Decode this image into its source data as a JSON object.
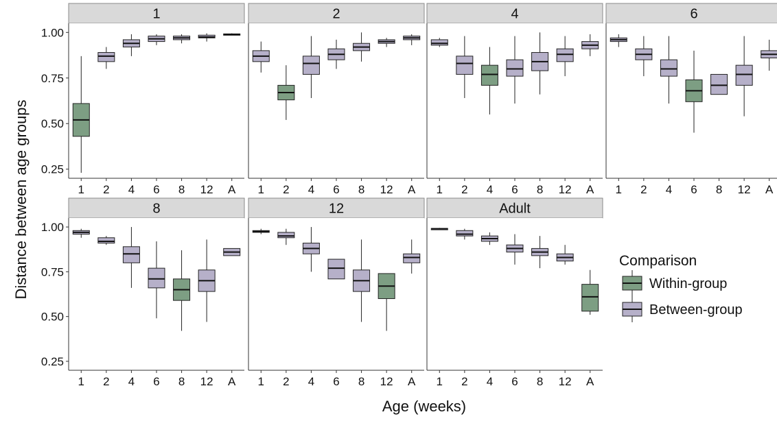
{
  "chart_data": {
    "type": "boxplot",
    "facet_by": "Age (weeks)",
    "xlabel": "Age (weeks)",
    "ylabel": "Distance between age groups",
    "categories": [
      "1",
      "2",
      "4",
      "6",
      "8",
      "12",
      "A"
    ],
    "ylim": [
      0.2,
      1.05
    ],
    "yticks": [
      0.25,
      0.5,
      0.75,
      1.0
    ],
    "ytick_labels": [
      "0.25",
      "0.50",
      "0.75",
      "1.00"
    ],
    "grid": false,
    "legend": {
      "title": "Comparison",
      "position": "right",
      "entries": [
        {
          "name": "Within-group",
          "color": "#7d9e83"
        },
        {
          "name": "Between-group",
          "color": "#b6b0c9"
        }
      ]
    },
    "facets": [
      {
        "title": "1",
        "boxes": [
          {
            "x": "1",
            "type": "within",
            "whisker_low": 0.23,
            "q1": 0.43,
            "median": 0.52,
            "q3": 0.61,
            "whisker_high": 0.87
          },
          {
            "x": "2",
            "type": "between",
            "whisker_low": 0.8,
            "q1": 0.84,
            "median": 0.87,
            "q3": 0.89,
            "whisker_high": 0.92
          },
          {
            "x": "4",
            "type": "between",
            "whisker_low": 0.87,
            "q1": 0.92,
            "median": 0.94,
            "q3": 0.96,
            "whisker_high": 0.99
          },
          {
            "x": "6",
            "type": "between",
            "whisker_low": 0.93,
            "q1": 0.95,
            "median": 0.965,
            "q3": 0.98,
            "whisker_high": 0.99
          },
          {
            "x": "8",
            "type": "between",
            "whisker_low": 0.94,
            "q1": 0.96,
            "median": 0.97,
            "q3": 0.98,
            "whisker_high": 0.99
          },
          {
            "x": "12",
            "type": "between",
            "whisker_low": 0.95,
            "q1": 0.97,
            "median": 0.975,
            "q3": 0.985,
            "whisker_high": 0.995
          },
          {
            "x": "A",
            "type": "between",
            "whisker_low": 0.985,
            "q1": 0.988,
            "median": 0.99,
            "q3": 0.992,
            "whisker_high": 0.995
          }
        ]
      },
      {
        "title": "2",
        "boxes": [
          {
            "x": "1",
            "type": "between",
            "whisker_low": 0.78,
            "q1": 0.84,
            "median": 0.87,
            "q3": 0.9,
            "whisker_high": 0.95
          },
          {
            "x": "2",
            "type": "within",
            "whisker_low": 0.52,
            "q1": 0.63,
            "median": 0.67,
            "q3": 0.71,
            "whisker_high": 0.82
          },
          {
            "x": "4",
            "type": "between",
            "whisker_low": 0.64,
            "q1": 0.77,
            "median": 0.83,
            "q3": 0.87,
            "whisker_high": 0.98
          },
          {
            "x": "6",
            "type": "between",
            "whisker_low": 0.8,
            "q1": 0.85,
            "median": 0.88,
            "q3": 0.91,
            "whisker_high": 0.96
          },
          {
            "x": "8",
            "type": "between",
            "whisker_low": 0.84,
            "q1": 0.9,
            "median": 0.92,
            "q3": 0.94,
            "whisker_high": 1.0
          },
          {
            "x": "12",
            "type": "between",
            "whisker_low": 0.92,
            "q1": 0.94,
            "median": 0.95,
            "q3": 0.96,
            "whisker_high": 0.97
          },
          {
            "x": "A",
            "type": "between",
            "whisker_low": 0.93,
            "q1": 0.96,
            "median": 0.97,
            "q3": 0.98,
            "whisker_high": 0.99
          }
        ]
      },
      {
        "title": "4",
        "boxes": [
          {
            "x": "1",
            "type": "between",
            "whisker_low": 0.92,
            "q1": 0.93,
            "median": 0.94,
            "q3": 0.96,
            "whisker_high": 0.97
          },
          {
            "x": "2",
            "type": "between",
            "whisker_low": 0.64,
            "q1": 0.77,
            "median": 0.83,
            "q3": 0.87,
            "whisker_high": 0.98
          },
          {
            "x": "4",
            "type": "within",
            "whisker_low": 0.55,
            "q1": 0.71,
            "median": 0.77,
            "q3": 0.82,
            "whisker_high": 0.92
          },
          {
            "x": "6",
            "type": "between",
            "whisker_low": 0.61,
            "q1": 0.76,
            "median": 0.8,
            "q3": 0.85,
            "whisker_high": 0.98
          },
          {
            "x": "8",
            "type": "between",
            "whisker_low": 0.66,
            "q1": 0.79,
            "median": 0.84,
            "q3": 0.89,
            "whisker_high": 1.0
          },
          {
            "x": "12",
            "type": "between",
            "whisker_low": 0.76,
            "q1": 0.84,
            "median": 0.88,
            "q3": 0.91,
            "whisker_high": 0.98
          },
          {
            "x": "A",
            "type": "between",
            "whisker_low": 0.87,
            "q1": 0.91,
            "median": 0.93,
            "q3": 0.95,
            "whisker_high": 0.99
          }
        ]
      },
      {
        "title": "6",
        "boxes": [
          {
            "x": "1",
            "type": "between",
            "whisker_low": 0.92,
            "q1": 0.95,
            "median": 0.96,
            "q3": 0.97,
            "whisker_high": 0.99
          },
          {
            "x": "2",
            "type": "between",
            "whisker_low": 0.76,
            "q1": 0.85,
            "median": 0.88,
            "q3": 0.91,
            "whisker_high": 0.98
          },
          {
            "x": "4",
            "type": "between",
            "whisker_low": 0.61,
            "q1": 0.76,
            "median": 0.8,
            "q3": 0.85,
            "whisker_high": 0.98
          },
          {
            "x": "6",
            "type": "within",
            "whisker_low": 0.45,
            "q1": 0.62,
            "median": 0.68,
            "q3": 0.74,
            "whisker_high": 0.9
          },
          {
            "x": "8",
            "type": "between",
            "whisker_low": 0.66,
            "q1": 0.66,
            "median": 0.71,
            "q3": 0.77,
            "whisker_high": 0.77
          },
          {
            "x": "12",
            "type": "between",
            "whisker_low": 0.54,
            "q1": 0.71,
            "median": 0.77,
            "q3": 0.82,
            "whisker_high": 0.98
          },
          {
            "x": "A",
            "type": "between",
            "whisker_low": 0.79,
            "q1": 0.86,
            "median": 0.88,
            "q3": 0.9,
            "whisker_high": 0.96
          }
        ]
      },
      {
        "title": "8",
        "boxes": [
          {
            "x": "1",
            "type": "between",
            "whisker_low": 0.94,
            "q1": 0.96,
            "median": 0.97,
            "q3": 0.98,
            "whisker_high": 0.99
          },
          {
            "x": "2",
            "type": "between",
            "whisker_low": 0.9,
            "q1": 0.91,
            "median": 0.92,
            "q3": 0.94,
            "whisker_high": 0.95
          },
          {
            "x": "4",
            "type": "between",
            "whisker_low": 0.66,
            "q1": 0.8,
            "median": 0.85,
            "q3": 0.89,
            "whisker_high": 1.0
          },
          {
            "x": "6",
            "type": "between",
            "whisker_low": 0.49,
            "q1": 0.66,
            "median": 0.71,
            "q3": 0.77,
            "whisker_high": 0.92
          },
          {
            "x": "8",
            "type": "within",
            "whisker_low": 0.42,
            "q1": 0.59,
            "median": 0.65,
            "q3": 0.71,
            "whisker_high": 0.87
          },
          {
            "x": "12",
            "type": "between",
            "whisker_low": 0.47,
            "q1": 0.64,
            "median": 0.7,
            "q3": 0.76,
            "whisker_high": 0.93
          },
          {
            "x": "A",
            "type": "between",
            "whisker_low": 0.84,
            "q1": 0.84,
            "median": 0.86,
            "q3": 0.88,
            "whisker_high": 0.88
          }
        ]
      },
      {
        "title": "12",
        "boxes": [
          {
            "x": "1",
            "type": "between",
            "whisker_low": 0.96,
            "q1": 0.97,
            "median": 0.975,
            "q3": 0.98,
            "whisker_high": 0.99
          },
          {
            "x": "2",
            "type": "between",
            "whisker_low": 0.9,
            "q1": 0.94,
            "median": 0.95,
            "q3": 0.97,
            "whisker_high": 0.99
          },
          {
            "x": "4",
            "type": "between",
            "whisker_low": 0.75,
            "q1": 0.85,
            "median": 0.88,
            "q3": 0.91,
            "whisker_high": 1.0
          },
          {
            "x": "6",
            "type": "between",
            "whisker_low": 0.71,
            "q1": 0.71,
            "median": 0.77,
            "q3": 0.82,
            "whisker_high": 0.82
          },
          {
            "x": "8",
            "type": "between",
            "whisker_low": 0.47,
            "q1": 0.64,
            "median": 0.7,
            "q3": 0.76,
            "whisker_high": 0.93
          },
          {
            "x": "12",
            "type": "within",
            "whisker_low": 0.42,
            "q1": 0.6,
            "median": 0.67,
            "q3": 0.74,
            "whisker_high": 0.74
          },
          {
            "x": "A",
            "type": "between",
            "whisker_low": 0.74,
            "q1": 0.8,
            "median": 0.83,
            "q3": 0.85,
            "whisker_high": 0.93
          }
        ]
      },
      {
        "title": "Adult",
        "boxes": [
          {
            "x": "1",
            "type": "between",
            "whisker_low": 0.985,
            "q1": 0.988,
            "median": 0.99,
            "q3": 0.992,
            "whisker_high": 0.995
          },
          {
            "x": "2",
            "type": "between",
            "whisker_low": 0.93,
            "q1": 0.95,
            "median": 0.96,
            "q3": 0.98,
            "whisker_high": 0.99
          },
          {
            "x": "4",
            "type": "between",
            "whisker_low": 0.9,
            "q1": 0.92,
            "median": 0.935,
            "q3": 0.95,
            "whisker_high": 0.97
          },
          {
            "x": "6",
            "type": "between",
            "whisker_low": 0.79,
            "q1": 0.86,
            "median": 0.88,
            "q3": 0.9,
            "whisker_high": 0.96
          },
          {
            "x": "8",
            "type": "between",
            "whisker_low": 0.77,
            "q1": 0.84,
            "median": 0.86,
            "q3": 0.88,
            "whisker_high": 0.95
          },
          {
            "x": "12",
            "type": "between",
            "whisker_low": 0.79,
            "q1": 0.81,
            "median": 0.83,
            "q3": 0.85,
            "whisker_high": 0.9
          },
          {
            "x": "A",
            "type": "within",
            "whisker_low": 0.51,
            "q1": 0.53,
            "median": 0.61,
            "q3": 0.68,
            "whisker_high": 0.76
          }
        ]
      }
    ]
  }
}
